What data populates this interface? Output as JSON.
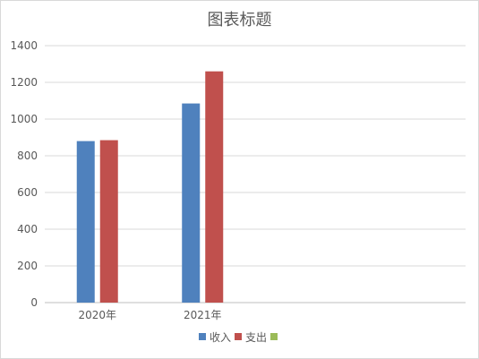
{
  "chart_data": {
    "type": "bar",
    "title": "图表标题",
    "categories": [
      "2020年",
      "2021年",
      "",
      ""
    ],
    "series": [
      {
        "name": "收入",
        "color": "#4f81bd",
        "values": [
          880,
          1085,
          null,
          null
        ]
      },
      {
        "name": "支出",
        "color": "#c0504d",
        "values": [
          885,
          1260,
          null,
          null
        ]
      },
      {
        "name": "",
        "color": "#9bbb59",
        "values": [
          null,
          null,
          null,
          null
        ]
      }
    ],
    "ylim": [
      0,
      1400
    ],
    "yticks": [
      0,
      200,
      400,
      600,
      800,
      1000,
      1200,
      1400
    ],
    "grid": true,
    "legend": "bottom",
    "xlabel": "",
    "ylabel": ""
  }
}
